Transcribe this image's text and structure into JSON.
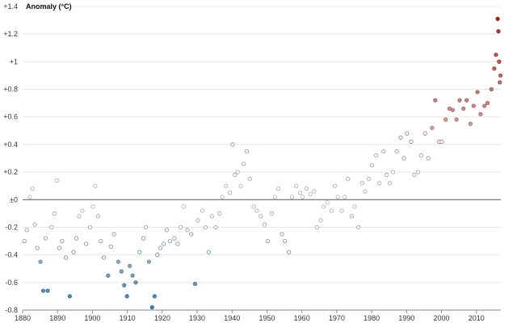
{
  "chart_data": {
    "type": "scatter",
    "title": "",
    "ylabel": "Anomaly (°C)",
    "xlabel": "",
    "xlim": [
      1880,
      2017
    ],
    "ylim": [
      -0.8,
      1.4
    ],
    "grid": true,
    "zero_line": true,
    "x_ticks": [
      1880,
      1890,
      1900,
      1910,
      1920,
      1930,
      1940,
      1950,
      1960,
      1970,
      1980,
      1990,
      2000,
      2010
    ],
    "x_tick_labels": [
      "1880",
      "1890",
      "1900",
      "1910",
      "1920",
      "1930",
      "1940",
      "1950",
      "1960",
      "1970",
      "1980",
      "1990",
      "2000",
      "2010"
    ],
    "y_ticks": [
      -0.8,
      -0.6,
      -0.4,
      -0.2,
      0,
      0.2,
      0.4,
      0.6,
      0.8,
      1,
      1.2,
      1.4
    ],
    "y_tick_labels": [
      "-0.8",
      "-0.6",
      "-0.4",
      "-0.2",
      "±0",
      "+0.2",
      "+0.4",
      "+0.6",
      "+0.8",
      "+1",
      "+1.2",
      "+1.4"
    ],
    "color_scale": {
      "cold": "#3d7cae",
      "neutral": "#f2f2f2",
      "warm": "#a8221b",
      "min": -0.8,
      "max": 1.35,
      "filled_threshold": 0.5
    },
    "series": [
      {
        "points": [
          [
            1880.5,
            -0.3
          ],
          [
            1881.2,
            -0.22
          ],
          [
            1882.1,
            0.02
          ],
          [
            1882.8,
            0.08
          ],
          [
            1883.5,
            -0.18
          ],
          [
            1884.2,
            -0.35
          ],
          [
            1885.1,
            -0.45
          ],
          [
            1885.9,
            -0.66
          ],
          [
            1886.6,
            -0.28
          ],
          [
            1887.2,
            -0.66
          ],
          [
            1888.3,
            -0.2
          ],
          [
            1889.1,
            -0.1
          ],
          [
            1889.8,
            0.14
          ],
          [
            1890.5,
            -0.35
          ],
          [
            1891.3,
            -0.3
          ],
          [
            1892.4,
            -0.42
          ],
          [
            1893.5,
            -0.7
          ],
          [
            1894.6,
            -0.38
          ],
          [
            1895.4,
            -0.28
          ],
          [
            1896.2,
            -0.12
          ],
          [
            1897.1,
            -0.08
          ],
          [
            1898.2,
            -0.32
          ],
          [
            1899.3,
            -0.2
          ],
          [
            1900.1,
            -0.05
          ],
          [
            1900.8,
            0.1
          ],
          [
            1901.6,
            -0.12
          ],
          [
            1902.4,
            -0.3
          ],
          [
            1903.3,
            -0.42
          ],
          [
            1904.5,
            -0.55
          ],
          [
            1905.3,
            -0.34
          ],
          [
            1906.2,
            -0.25
          ],
          [
            1907.4,
            -0.45
          ],
          [
            1908.3,
            -0.52
          ],
          [
            1909.1,
            -0.62
          ],
          [
            1909.9,
            -0.7
          ],
          [
            1910.7,
            -0.48
          ],
          [
            1911.5,
            -0.55
          ],
          [
            1912.4,
            -0.6
          ],
          [
            1913.5,
            -0.38
          ],
          [
            1914.6,
            -0.28
          ],
          [
            1915.3,
            -0.2
          ],
          [
            1916.2,
            -0.45
          ],
          [
            1917.1,
            -0.78
          ],
          [
            1917.8,
            -0.7
          ],
          [
            1918.6,
            -0.4
          ],
          [
            1919.5,
            -0.35
          ],
          [
            1920.4,
            -0.32
          ],
          [
            1921.3,
            -0.22
          ],
          [
            1922.2,
            -0.3
          ],
          [
            1923.5,
            -0.28
          ],
          [
            1924.4,
            -0.32
          ],
          [
            1925.3,
            -0.2
          ],
          [
            1926.1,
            -0.05
          ],
          [
            1927.2,
            -0.22
          ],
          [
            1928.3,
            -0.25
          ],
          [
            1929.4,
            -0.61
          ],
          [
            1930.2,
            -0.15
          ],
          [
            1931.5,
            -0.08
          ],
          [
            1932.4,
            -0.2
          ],
          [
            1933.3,
            -0.38
          ],
          [
            1934.2,
            -0.12
          ],
          [
            1935.3,
            -0.2
          ],
          [
            1936.4,
            -0.1
          ],
          [
            1937.2,
            0.02
          ],
          [
            1938.3,
            0.1
          ],
          [
            1939.4,
            0.05
          ],
          [
            1940.1,
            0.4
          ],
          [
            1940.8,
            0.18
          ],
          [
            1941.6,
            0.2
          ],
          [
            1942.5,
            0.1
          ],
          [
            1943.3,
            0.26
          ],
          [
            1944.2,
            0.35
          ],
          [
            1945.1,
            0.15
          ],
          [
            1946.2,
            -0.05
          ],
          [
            1947.1,
            -0.08
          ],
          [
            1948.2,
            -0.12
          ],
          [
            1949.3,
            -0.18
          ],
          [
            1950.2,
            -0.3
          ],
          [
            1951.4,
            -0.1
          ],
          [
            1952.3,
            0.02
          ],
          [
            1953.2,
            0.08
          ],
          [
            1954.3,
            -0.25
          ],
          [
            1955.1,
            -0.3
          ],
          [
            1956.3,
            -0.38
          ],
          [
            1957.2,
            0.02
          ],
          [
            1958.4,
            0.1
          ],
          [
            1959.5,
            0.05
          ],
          [
            1960.2,
            0.02
          ],
          [
            1961.3,
            0.08
          ],
          [
            1962.4,
            0.04
          ],
          [
            1963.5,
            0.06
          ],
          [
            1964.3,
            -0.2
          ],
          [
            1965.4,
            -0.15
          ],
          [
            1966.2,
            -0.05
          ],
          [
            1967.3,
            -0.02
          ],
          [
            1968.5,
            -0.08
          ],
          [
            1969.4,
            0.1
          ],
          [
            1970.3,
            0.02
          ],
          [
            1971.4,
            -0.08
          ],
          [
            1972.3,
            0.02
          ],
          [
            1973.2,
            0.15
          ],
          [
            1974.3,
            -0.12
          ],
          [
            1975.1,
            -0.05
          ],
          [
            1976.2,
            -0.2
          ],
          [
            1977.3,
            0.12
          ],
          [
            1978.1,
            0.06
          ],
          [
            1979.2,
            0.15
          ],
          [
            1980.1,
            0.25
          ],
          [
            1981.3,
            0.32
          ],
          [
            1982.2,
            0.12
          ],
          [
            1983.4,
            0.35
          ],
          [
            1984.3,
            0.18
          ],
          [
            1985.2,
            0.12
          ],
          [
            1986.1,
            0.2
          ],
          [
            1987.2,
            0.35
          ],
          [
            1988.3,
            0.45
          ],
          [
            1989.2,
            0.3
          ],
          [
            1990.1,
            0.48
          ],
          [
            1991.3,
            0.42
          ],
          [
            1992.2,
            0.18
          ],
          [
            1993.3,
            0.2
          ],
          [
            1994.2,
            0.32
          ],
          [
            1995.3,
            0.48
          ],
          [
            1996.2,
            0.3
          ],
          [
            1997.3,
            0.52
          ],
          [
            1998.2,
            0.72
          ],
          [
            1999.3,
            0.42
          ],
          [
            2000.1,
            0.42
          ],
          [
            2001.2,
            0.58
          ],
          [
            2002.3,
            0.66
          ],
          [
            2003.2,
            0.65
          ],
          [
            2004.3,
            0.58
          ],
          [
            2005.2,
            0.72
          ],
          [
            2006.3,
            0.66
          ],
          [
            2007.2,
            0.72
          ],
          [
            2008.3,
            0.55
          ],
          [
            2009.2,
            0.68
          ],
          [
            2010.3,
            0.78
          ],
          [
            2011.2,
            0.62
          ],
          [
            2012.3,
            0.68
          ],
          [
            2013.2,
            0.7
          ],
          [
            2014.3,
            0.8
          ],
          [
            2015.1,
            0.95
          ],
          [
            2015.6,
            1.05
          ],
          [
            2016.1,
            1.31
          ],
          [
            2016.3,
            1.22
          ],
          [
            2016.5,
            1.0
          ],
          [
            2016.7,
            0.85
          ],
          [
            2016.9,
            0.9
          ]
        ]
      }
    ]
  }
}
